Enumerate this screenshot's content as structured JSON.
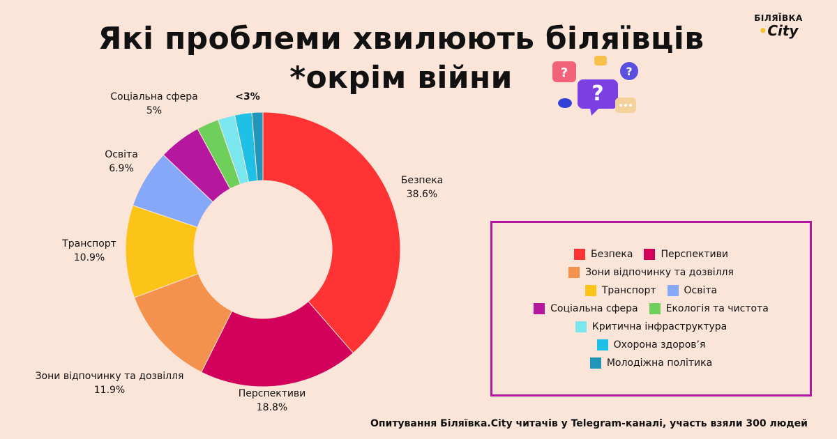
{
  "title": {
    "line1": "Які проблеми хвилюють біляївців",
    "line2": "*окрім війни"
  },
  "logo": {
    "line1": "БІЛЯЇВКА",
    "line2_dot": "•",
    "line2": "City"
  },
  "footer": "Опитування Біляївка.City читачів у Telegram-каналі, участь взяли 300 людей",
  "chart_data": {
    "type": "pie",
    "donut": true,
    "slices": [
      {
        "name": "Безпека",
        "value": 38.6,
        "label": "38.6%",
        "color": "#ff3333"
      },
      {
        "name": "Перспективи",
        "value": 18.8,
        "label": "18.8%",
        "color": "#d2005a"
      },
      {
        "name": "Зони відпочинку та дозвілля",
        "value": 11.9,
        "label": "11.9%",
        "color": "#f4914c"
      },
      {
        "name": "Транспорт",
        "value": 10.9,
        "label": "10.9%",
        "color": "#fcc419"
      },
      {
        "name": "Освіта",
        "value": 6.9,
        "label": "6.9%",
        "color": "#86a8f8"
      },
      {
        "name": "Соціальна сфера",
        "value": 5.0,
        "label": "5%",
        "color": "#b5179e"
      },
      {
        "name": "Екологія та чистота",
        "value": 2.6,
        "label": "",
        "color": "#6fcf5b"
      },
      {
        "name": "Критична інфраструктура",
        "value": 2.0,
        "label": "",
        "color": "#7ae6ee"
      },
      {
        "name": "Охорона здоров'я",
        "value": 2.0,
        "label": "",
        "color": "#1ec0e6"
      },
      {
        "name": "Молодіжна політика",
        "value": 1.3,
        "label": "",
        "color": "#2196b8"
      }
    ],
    "small_group_label": "<3%",
    "legend": [
      [
        "Безпека",
        "Перспективи"
      ],
      [
        "Зони відпочинку та дозвілля"
      ],
      [
        "Транспорт",
        "Освіта"
      ],
      [
        "Соціальна сфера",
        "Екологія та чистота"
      ],
      [
        "Критична інфраструктура"
      ],
      [
        "Охорона здоров’я"
      ],
      [
        "Молодіжна політика"
      ]
    ]
  }
}
